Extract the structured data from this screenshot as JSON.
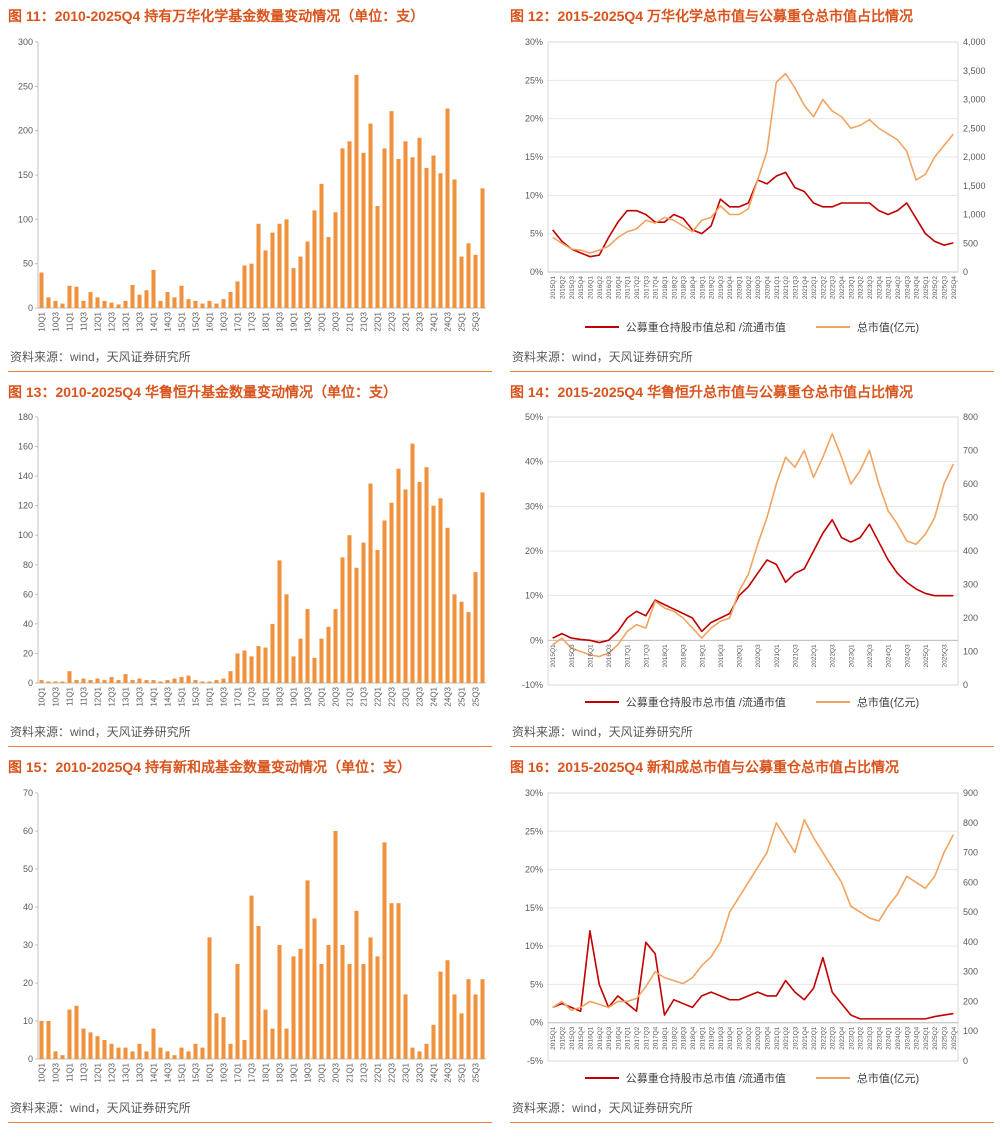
{
  "source_text": "资料来源：wind，天风证券研究所",
  "colors": {
    "accent": "#d9531c",
    "rule": "#ed7d31",
    "bar": "#f0913e",
    "red_line": "#c00000",
    "orange_line": "#f2a361",
    "axis": "#bfbfbf",
    "grid": "#e6e6e6",
    "tick_text": "#595959"
  },
  "chart_data": [
    {
      "title": "图 11：2010-2025Q4 持有万华化学基金数量变动情况（单位：支）",
      "type": "bar",
      "bar_color": "#f0913e",
      "ylim": [
        0,
        300
      ],
      "ystep": 50,
      "label_every": 2,
      "categories": [
        "10Q1",
        "10Q2",
        "10Q3",
        "10Q4",
        "11Q1",
        "11Q2",
        "11Q3",
        "11Q4",
        "12Q1",
        "12Q2",
        "12Q3",
        "12Q4",
        "13Q1",
        "13Q2",
        "13Q3",
        "13Q4",
        "14Q1",
        "14Q2",
        "14Q3",
        "14Q4",
        "15Q1",
        "15Q2",
        "15Q3",
        "15Q4",
        "16Q1",
        "16Q2",
        "16Q3",
        "16Q4",
        "17Q1",
        "17Q2",
        "17Q3",
        "17Q4",
        "18Q1",
        "18Q2",
        "18Q3",
        "18Q4",
        "19Q1",
        "19Q2",
        "19Q3",
        "19Q4",
        "20Q1",
        "20Q2",
        "20Q3",
        "20Q4",
        "21Q1",
        "21Q2",
        "21Q3",
        "21Q4",
        "22Q1",
        "22Q2",
        "22Q3",
        "22Q4",
        "23Q1",
        "23Q2",
        "23Q3",
        "23Q4",
        "24Q1",
        "24Q2",
        "24Q3",
        "24Q4",
        "25Q1",
        "25Q2",
        "25Q3",
        "25Q4"
      ],
      "values": [
        40,
        12,
        8,
        5,
        25,
        24,
        8,
        18,
        12,
        8,
        6,
        4,
        8,
        26,
        15,
        20,
        43,
        8,
        18,
        12,
        25,
        10,
        8,
        5,
        8,
        5,
        10,
        18,
        30,
        48,
        50,
        95,
        65,
        85,
        95,
        100,
        45,
        58,
        75,
        110,
        140,
        80,
        108,
        180,
        188,
        263,
        175,
        208,
        115,
        180,
        222,
        168,
        188,
        170,
        192,
        158,
        172,
        152,
        225,
        145,
        58,
        73,
        60,
        135
      ]
    },
    {
      "title": "图 12：2015-2025Q4 万华化学总市值与公募重仓总市值占比情况",
      "type": "line",
      "label_every": 1,
      "left": {
        "min": 0,
        "max": 30,
        "step": 5,
        "format": "percent"
      },
      "right": {
        "min": 0,
        "max": 4000,
        "step": 500,
        "format": "thousands"
      },
      "x": [
        "2015Q1",
        "2015Q2",
        "2015Q3",
        "2015Q4",
        "2016Q1",
        "2016Q2",
        "2016Q3",
        "2016Q4",
        "2017Q1",
        "2017Q2",
        "2017Q3",
        "2017Q4",
        "2018Q1",
        "2018Q2",
        "2018Q3",
        "2018Q4",
        "2019Q1",
        "2019Q2",
        "2019Q3",
        "2019Q4",
        "2020Q1",
        "2020Q2",
        "2020Q3",
        "2020Q4",
        "2021Q1",
        "2021Q2",
        "2021Q3",
        "2021Q4",
        "2022Q1",
        "2022Q2",
        "2022Q3",
        "2022Q4",
        "2023Q1",
        "2023Q2",
        "2023Q3",
        "2023Q4",
        "2024Q1",
        "2024Q2",
        "2024Q3",
        "2024Q4",
        "2025Q1",
        "2025Q2",
        "2025Q3",
        "2025Q4"
      ],
      "series": [
        {
          "name": "公募重仓持股市值总和 /流通市值",
          "axis": "left",
          "color": "#c00000",
          "values": [
            5.5,
            4.0,
            3.0,
            2.5,
            2.0,
            2.2,
            4.5,
            6.5,
            8.0,
            8.0,
            7.5,
            6.5,
            6.5,
            7.5,
            7.0,
            5.5,
            5.0,
            6.0,
            9.5,
            8.5,
            8.5,
            9.0,
            12.0,
            11.5,
            12.5,
            13.0,
            11.0,
            10.5,
            9.0,
            8.5,
            8.5,
            9.0,
            9.0,
            9.0,
            9.0,
            8.0,
            7.5,
            8.0,
            9.0,
            7.0,
            5.0,
            4.0,
            3.5,
            3.8
          ]
        },
        {
          "name": "总市值(亿元)",
          "axis": "right",
          "color": "#f2a361",
          "values": [
            600,
            500,
            400,
            380,
            330,
            380,
            450,
            600,
            700,
            750,
            900,
            850,
            950,
            900,
            800,
            700,
            900,
            950,
            1150,
            1000,
            1000,
            1100,
            1600,
            2100,
            3300,
            3450,
            3200,
            2900,
            2700,
            3000,
            2800,
            2700,
            2500,
            2550,
            2650,
            2500,
            2400,
            2300,
            2100,
            1600,
            1700,
            2000,
            2200,
            2400
          ]
        }
      ]
    },
    {
      "title": "图 13：2010-2025Q4 华鲁恒升基金数量变动情况（单位：支）",
      "type": "bar",
      "bar_color": "#f0913e",
      "ylim": [
        0,
        180
      ],
      "ystep": 20,
      "label_every": 2,
      "categories": [
        "10Q1",
        "10Q2",
        "10Q3",
        "10Q4",
        "11Q1",
        "11Q2",
        "11Q3",
        "11Q4",
        "12Q1",
        "12Q2",
        "12Q3",
        "12Q4",
        "13Q1",
        "13Q2",
        "13Q3",
        "13Q4",
        "14Q1",
        "14Q2",
        "14Q3",
        "14Q4",
        "15Q1",
        "15Q2",
        "15Q3",
        "15Q4",
        "16Q1",
        "16Q2",
        "16Q3",
        "16Q4",
        "17Q1",
        "17Q2",
        "17Q3",
        "17Q4",
        "18Q1",
        "18Q2",
        "18Q3",
        "18Q4",
        "19Q1",
        "19Q2",
        "19Q3",
        "19Q4",
        "20Q1",
        "20Q2",
        "20Q3",
        "20Q4",
        "21Q1",
        "21Q2",
        "21Q3",
        "21Q4",
        "22Q1",
        "22Q2",
        "22Q3",
        "22Q4",
        "23Q1",
        "23Q2",
        "23Q3",
        "23Q4",
        "24Q1",
        "24Q2",
        "24Q3",
        "24Q4",
        "25Q1",
        "25Q2",
        "25Q3",
        "25Q4"
      ],
      "values": [
        2,
        1,
        1,
        1,
        8,
        2,
        3,
        2,
        3,
        2,
        4,
        2,
        6,
        2,
        3,
        2,
        2,
        1,
        2,
        3,
        4,
        5,
        2,
        1,
        1,
        2,
        3,
        8,
        20,
        22,
        18,
        25,
        24,
        40,
        83,
        60,
        18,
        30,
        50,
        17,
        30,
        38,
        50,
        85,
        100,
        78,
        95,
        135,
        90,
        110,
        122,
        145,
        131,
        162,
        136,
        146,
        120,
        125,
        105,
        60,
        55,
        48,
        75,
        129
      ]
    },
    {
      "title": "图 14：2015-2025Q4 华鲁恒升总市值与公募重仓总市值占比情况",
      "type": "line",
      "label_every": 2,
      "left": {
        "min": -10,
        "max": 50,
        "step": 10,
        "format": "percent"
      },
      "right": {
        "min": 0,
        "max": 800,
        "step": 100,
        "format": "plain"
      },
      "x": [
        "2015Q1",
        "2015Q2",
        "2015Q3",
        "2015Q4",
        "2016Q1",
        "2016Q2",
        "2016Q3",
        "2016Q4",
        "2017Q1",
        "2017Q2",
        "2017Q3",
        "2017Q4",
        "2018Q1",
        "2018Q2",
        "2018Q3",
        "2018Q4",
        "2019Q1",
        "2019Q2",
        "2019Q3",
        "2019Q4",
        "2020Q1",
        "2020Q2",
        "2020Q3",
        "2020Q4",
        "2021Q1",
        "2021Q2",
        "2021Q3",
        "2021Q4",
        "2022Q1",
        "2022Q2",
        "2022Q3",
        "2022Q4",
        "2023Q1",
        "2023Q2",
        "2023Q3",
        "2023Q4",
        "2024Q1",
        "2024Q2",
        "2024Q3",
        "2024Q4",
        "2025Q1",
        "2025Q2",
        "2025Q3",
        "2025Q4"
      ],
      "series": [
        {
          "name": "公募重仓持股市总市值 /流通市值",
          "axis": "left",
          "color": "#c00000",
          "values": [
            0.5,
            1.5,
            0.5,
            0.2,
            0.0,
            -0.5,
            0.0,
            2.0,
            5.0,
            6.5,
            5.5,
            9.0,
            8.0,
            7.0,
            6.0,
            5.0,
            2.0,
            4.0,
            5.0,
            6.0,
            10.0,
            12.0,
            15.0,
            18.0,
            17.0,
            13.0,
            15.0,
            16.0,
            20.0,
            24.0,
            27.0,
            23.0,
            22.0,
            23.0,
            26.0,
            22.0,
            18.0,
            15.0,
            13.0,
            11.5,
            10.5,
            10.0,
            10.0,
            10.0
          ]
        },
        {
          "name": "总市值(亿元)",
          "axis": "right",
          "color": "#f2a361",
          "values": [
            120,
            140,
            110,
            100,
            90,
            85,
            95,
            120,
            160,
            180,
            170,
            250,
            230,
            220,
            200,
            170,
            140,
            170,
            190,
            200,
            280,
            330,
            420,
            500,
            600,
            680,
            650,
            700,
            620,
            680,
            750,
            680,
            600,
            640,
            700,
            600,
            520,
            480,
            430,
            420,
            450,
            500,
            600,
            660
          ]
        }
      ]
    },
    {
      "title": "图 15：2010-2025Q4 持有新和成基金数量变动情况（单位：支）",
      "type": "bar",
      "bar_color": "#f0913e",
      "ylim": [
        0,
        70
      ],
      "ystep": 10,
      "label_every": 2,
      "categories": [
        "10Q1",
        "10Q2",
        "10Q3",
        "10Q4",
        "11Q1",
        "11Q2",
        "11Q3",
        "11Q4",
        "12Q1",
        "12Q2",
        "12Q3",
        "12Q4",
        "13Q1",
        "13Q2",
        "13Q3",
        "13Q4",
        "14Q1",
        "14Q2",
        "14Q3",
        "14Q4",
        "15Q1",
        "15Q2",
        "15Q3",
        "15Q4",
        "16Q1",
        "16Q2",
        "16Q3",
        "16Q4",
        "17Q1",
        "17Q2",
        "17Q3",
        "17Q4",
        "18Q1",
        "18Q2",
        "18Q3",
        "18Q4",
        "19Q1",
        "19Q2",
        "19Q3",
        "19Q4",
        "20Q1",
        "20Q2",
        "20Q3",
        "20Q4",
        "21Q1",
        "21Q2",
        "21Q3",
        "21Q4",
        "22Q1",
        "22Q2",
        "22Q3",
        "22Q4",
        "23Q1",
        "23Q2",
        "23Q3",
        "23Q4",
        "24Q1",
        "24Q2",
        "24Q3",
        "24Q4",
        "25Q1",
        "25Q2",
        "25Q3",
        "25Q4"
      ],
      "values": [
        10,
        10,
        2,
        1,
        13,
        14,
        8,
        7,
        6,
        5,
        4,
        3,
        3,
        2,
        4,
        2,
        8,
        3,
        2,
        1,
        3,
        2,
        4,
        3,
        32,
        12,
        11,
        4,
        25,
        5,
        43,
        35,
        13,
        8,
        30,
        8,
        27,
        29,
        47,
        37,
        25,
        30,
        60,
        30,
        25,
        39,
        25,
        32,
        27,
        57,
        41,
        41,
        17,
        3,
        2,
        4,
        9,
        23,
        26,
        17,
        12,
        21,
        17,
        21
      ]
    },
    {
      "title": "图 16：2015-2025Q4 新和成总市值与公募重仓总市值占比情况",
      "type": "line",
      "label_every": 1,
      "left": {
        "min": -5,
        "max": 30,
        "step": 5,
        "format": "percent"
      },
      "right": {
        "min": 0,
        "max": 900,
        "step": 100,
        "format": "plain"
      },
      "x": [
        "2015Q1",
        "2015Q2",
        "2015Q3",
        "2015Q4",
        "2016Q1",
        "2016Q2",
        "2016Q3",
        "2016Q4",
        "2017Q1",
        "2017Q2",
        "2017Q3",
        "2017Q4",
        "2018Q1",
        "2018Q2",
        "2018Q3",
        "2018Q4",
        "2019Q1",
        "2019Q2",
        "2019Q3",
        "2019Q4",
        "2020Q1",
        "2020Q2",
        "2020Q3",
        "2020Q4",
        "2021Q1",
        "2021Q2",
        "2021Q3",
        "2021Q4",
        "2022Q1",
        "2022Q2",
        "2022Q3",
        "2022Q4",
        "2023Q1",
        "2023Q2",
        "2023Q3",
        "2023Q4",
        "2024Q1",
        "2024Q2",
        "2024Q3",
        "2024Q4",
        "2025Q1",
        "2025Q2",
        "2025Q3",
        "2025Q4"
      ],
      "series": [
        {
          "name": "公募重仓持股市总市值 /流通市值",
          "axis": "left",
          "color": "#c00000",
          "values": [
            2.0,
            2.5,
            2.0,
            1.5,
            12.0,
            5.0,
            2.0,
            3.5,
            2.5,
            1.5,
            10.5,
            9.0,
            1.0,
            3.0,
            2.5,
            2.0,
            3.5,
            4.0,
            3.5,
            3.0,
            3.0,
            3.5,
            4.0,
            3.5,
            3.5,
            5.5,
            4.0,
            3.0,
            4.5,
            8.5,
            4.0,
            2.5,
            1.0,
            0.5,
            0.5,
            0.5,
            0.5,
            0.5,
            0.5,
            0.5,
            0.5,
            0.8,
            1.0,
            1.2
          ]
        },
        {
          "name": "总市值(亿元)",
          "axis": "right",
          "color": "#f2a361",
          "values": [
            180,
            200,
            170,
            180,
            200,
            190,
            180,
            200,
            200,
            210,
            250,
            300,
            280,
            270,
            260,
            280,
            320,
            350,
            400,
            500,
            550,
            600,
            650,
            700,
            800,
            750,
            700,
            810,
            750,
            700,
            650,
            600,
            520,
            500,
            480,
            470,
            520,
            560,
            620,
            600,
            580,
            620,
            700,
            760
          ]
        }
      ]
    }
  ]
}
